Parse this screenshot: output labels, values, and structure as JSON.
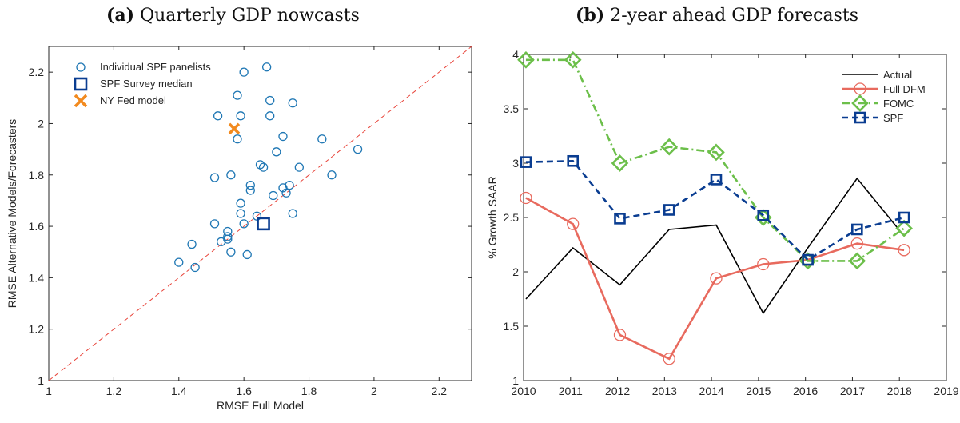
{
  "chart_data": [
    {
      "id": "a",
      "type": "scatter",
      "panel_label": "(a)",
      "title": "Quarterly GDP nowcasts",
      "xlabel": "RMSE Full Model",
      "ylabel": "RMSE Alternative Models/Forecasters",
      "xlim": [
        1,
        2.3
      ],
      "ylim": [
        1,
        2.3
      ],
      "xticks": [
        "1",
        "1.2",
        "1.4",
        "1.6",
        "1.8",
        "2",
        "2.2"
      ],
      "yticks": [
        "1",
        "1.2",
        "1.4",
        "1.6",
        "1.8",
        "2",
        "2.2"
      ],
      "grid": false,
      "reference_line": {
        "style": "dashed",
        "color": "#e8443a",
        "from": [
          1,
          1
        ],
        "to": [
          2.3,
          2.3
        ]
      },
      "legend_position": "top-left",
      "series": [
        {
          "name": "Individual SPF panelists",
          "marker": "circle",
          "color": "#1f77b4",
          "points": [
            [
              1.67,
              2.22
            ],
            [
              1.6,
              2.2
            ],
            [
              1.58,
              2.11
            ],
            [
              1.68,
              2.09
            ],
            [
              1.75,
              2.08
            ],
            [
              1.52,
              2.03
            ],
            [
              1.59,
              2.03
            ],
            [
              1.68,
              2.03
            ],
            [
              1.84,
              1.94
            ],
            [
              1.58,
              1.94
            ],
            [
              1.72,
              1.95
            ],
            [
              1.95,
              1.9
            ],
            [
              1.7,
              1.89
            ],
            [
              1.65,
              1.84
            ],
            [
              1.66,
              1.83
            ],
            [
              1.77,
              1.83
            ],
            [
              1.51,
              1.79
            ],
            [
              1.56,
              1.8
            ],
            [
              1.87,
              1.8
            ],
            [
              1.62,
              1.76
            ],
            [
              1.62,
              1.74
            ],
            [
              1.72,
              1.75
            ],
            [
              1.74,
              1.76
            ],
            [
              1.73,
              1.73
            ],
            [
              1.69,
              1.72
            ],
            [
              1.59,
              1.69
            ],
            [
              1.59,
              1.65
            ],
            [
              1.75,
              1.65
            ],
            [
              1.64,
              1.64
            ],
            [
              1.6,
              1.61
            ],
            [
              1.51,
              1.61
            ],
            [
              1.55,
              1.58
            ],
            [
              1.55,
              1.56
            ],
            [
              1.55,
              1.55
            ],
            [
              1.53,
              1.54
            ],
            [
              1.44,
              1.53
            ],
            [
              1.56,
              1.5
            ],
            [
              1.61,
              1.49
            ],
            [
              1.4,
              1.46
            ],
            [
              1.45,
              1.44
            ]
          ]
        },
        {
          "name": "SPF Survey median",
          "marker": "square",
          "color": "#0a3d91",
          "points": [
            [
              1.66,
              1.61
            ]
          ]
        },
        {
          "name": "NY Fed model",
          "marker": "x",
          "color": "#f28a1e",
          "points": [
            [
              1.57,
              1.98
            ]
          ]
        }
      ]
    },
    {
      "id": "b",
      "type": "line",
      "panel_label": "(b)",
      "title": "2-year ahead GDP forecasts",
      "xlabel": "",
      "ylabel": "% Growth SAAR",
      "xlim": [
        2010,
        2019
      ],
      "ylim": [
        1,
        4
      ],
      "xticks": [
        "2010",
        "2011",
        "2012",
        "2013",
        "2014",
        "2015",
        "2016",
        "2017",
        "2018",
        "2019"
      ],
      "yticks": [
        "1",
        "1.5",
        "2",
        "2.5",
        "3",
        "3.5",
        "4"
      ],
      "grid": false,
      "legend_position": "top-right",
      "series": [
        {
          "name": "Actual",
          "color": "#000000",
          "line": "solid",
          "marker": "none",
          "points": [
            [
              2010.05,
              1.75
            ],
            [
              2011.05,
              2.22
            ],
            [
              2012.05,
              1.88
            ],
            [
              2013.1,
              2.39
            ],
            [
              2014.1,
              2.43
            ],
            [
              2015.1,
              1.62
            ],
            [
              2016.05,
              2.22
            ],
            [
              2017.1,
              2.86
            ],
            [
              2018.1,
              2.33
            ]
          ]
        },
        {
          "name": "Full DFM",
          "color": "#e86a5e",
          "line": "solid",
          "marker": "circle",
          "points": [
            [
              2010.05,
              2.68
            ],
            [
              2011.05,
              2.44
            ],
            [
              2012.05,
              1.42
            ],
            [
              2013.1,
              1.2
            ],
            [
              2014.1,
              1.94
            ],
            [
              2015.1,
              2.07
            ],
            [
              2016.05,
              2.11
            ],
            [
              2017.1,
              2.26
            ],
            [
              2018.1,
              2.2
            ]
          ]
        },
        {
          "name": "FOMC",
          "color": "#6cbf4a",
          "line": "dashdot",
          "marker": "diamond",
          "points": [
            [
              2010.05,
              3.95
            ],
            [
              2011.05,
              3.95
            ],
            [
              2012.05,
              3.0
            ],
            [
              2013.1,
              3.15
            ],
            [
              2014.1,
              3.1
            ],
            [
              2015.1,
              2.5
            ],
            [
              2016.05,
              2.1
            ],
            [
              2017.1,
              2.1
            ],
            [
              2018.1,
              2.4
            ]
          ]
        },
        {
          "name": "SPF",
          "color": "#0a3d91",
          "line": "dashed",
          "marker": "square",
          "points": [
            [
              2010.05,
              3.01
            ],
            [
              2011.05,
              3.02
            ],
            [
              2012.05,
              2.49
            ],
            [
              2013.1,
              2.57
            ],
            [
              2014.1,
              2.85
            ],
            [
              2015.1,
              2.52
            ],
            [
              2016.05,
              2.11
            ],
            [
              2017.1,
              2.39
            ],
            [
              2018.1,
              2.5
            ]
          ]
        }
      ]
    }
  ]
}
